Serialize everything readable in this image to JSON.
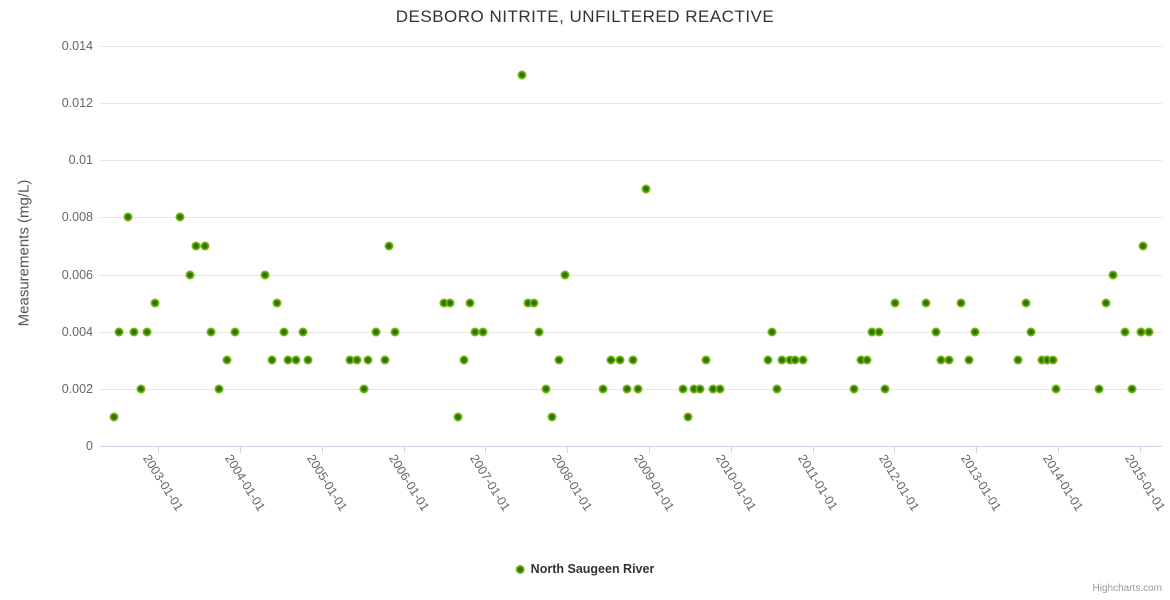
{
  "title": "DESBORO NITRITE, UNFILTERED REACTIVE",
  "credits": "Highcharts.com",
  "legend": {
    "series_label": "North Saugeen River"
  },
  "colors": {
    "point_outer": "#7cbc12",
    "point_inner": "#2f7008",
    "axis_line": "#ccd6eb",
    "gridline": "#e6e6e6",
    "label_text": "#666666",
    "title_text": "#333333"
  },
  "chart_data": {
    "type": "scatter",
    "title": "DESBORO NITRITE, UNFILTERED REACTIVE",
    "xlabel": "",
    "ylabel": "Measurements (mg/L)",
    "grid": true,
    "legend_position": "bottom",
    "xlim": [
      2002.29,
      2015.27
    ],
    "ylim": [
      0,
      0.014
    ],
    "ytick_values": [
      0,
      0.002,
      0.004,
      0.006,
      0.008,
      0.01,
      0.012,
      0.014
    ],
    "ytick_labels": [
      "0",
      "0.002",
      "0.004",
      "0.006",
      "0.008",
      "0.01",
      "0.012",
      "0.014"
    ],
    "xtick_values": [
      2003,
      2004,
      2005,
      2006,
      2007,
      2008,
      2009,
      2010,
      2011,
      2012,
      2013,
      2014,
      2015
    ],
    "xtick_labels": [
      "2003-01-01",
      "2004-01-01",
      "2005-01-01",
      "2006-01-01",
      "2007-01-01",
      "2008-01-01",
      "2009-01-01",
      "2010-01-01",
      "2011-01-01",
      "2012-01-01",
      "2013-01-01",
      "2014-01-01",
      "2015-01-01"
    ],
    "series": [
      {
        "name": "North Saugeen River",
        "color": "#7cbc12",
        "points": [
          [
            2002.46,
            0.001
          ],
          [
            2002.52,
            0.004
          ],
          [
            2002.63,
            0.008
          ],
          [
            2002.71,
            0.004
          ],
          [
            2002.79,
            0.002
          ],
          [
            2002.87,
            0.004
          ],
          [
            2002.96,
            0.005
          ],
          [
            2003.27,
            0.008
          ],
          [
            2003.39,
            0.006
          ],
          [
            2003.46,
            0.007
          ],
          [
            2003.57,
            0.007
          ],
          [
            2003.65,
            0.004
          ],
          [
            2003.75,
            0.002
          ],
          [
            2003.84,
            0.003
          ],
          [
            2003.94,
            0.004
          ],
          [
            2004.31,
            0.006
          ],
          [
            2004.39,
            0.003
          ],
          [
            2004.45,
            0.005
          ],
          [
            2004.54,
            0.004
          ],
          [
            2004.59,
            0.003
          ],
          [
            2004.69,
            0.003
          ],
          [
            2004.77,
            0.004
          ],
          [
            2004.83,
            0.003
          ],
          [
            2005.34,
            0.003
          ],
          [
            2005.43,
            0.003
          ],
          [
            2005.52,
            0.002
          ],
          [
            2005.57,
            0.003
          ],
          [
            2005.66,
            0.004
          ],
          [
            2005.77,
            0.003
          ],
          [
            2005.82,
            0.007
          ],
          [
            2005.89,
            0.004
          ],
          [
            2006.5,
            0.005
          ],
          [
            2006.57,
            0.005
          ],
          [
            2006.66,
            0.001
          ],
          [
            2006.74,
            0.003
          ],
          [
            2006.81,
            0.005
          ],
          [
            2006.87,
            0.004
          ],
          [
            2006.97,
            0.004
          ],
          [
            2007.45,
            0.013
          ],
          [
            2007.52,
            0.005
          ],
          [
            2007.6,
            0.005
          ],
          [
            2007.66,
            0.004
          ],
          [
            2007.74,
            0.002
          ],
          [
            2007.82,
            0.001
          ],
          [
            2007.9,
            0.003
          ],
          [
            2007.97,
            0.006
          ],
          [
            2008.44,
            0.002
          ],
          [
            2008.54,
            0.003
          ],
          [
            2008.64,
            0.003
          ],
          [
            2008.73,
            0.002
          ],
          [
            2008.81,
            0.003
          ],
          [
            2008.87,
            0.002
          ],
          [
            2008.96,
            0.009
          ],
          [
            2009.41,
            0.002
          ],
          [
            2009.48,
            0.001
          ],
          [
            2009.55,
            0.002
          ],
          [
            2009.62,
            0.002
          ],
          [
            2009.7,
            0.003
          ],
          [
            2009.78,
            0.002
          ],
          [
            2009.87,
            0.002
          ],
          [
            2010.45,
            0.003
          ],
          [
            2010.5,
            0.004
          ],
          [
            2010.57,
            0.002
          ],
          [
            2010.63,
            0.003
          ],
          [
            2010.72,
            0.003
          ],
          [
            2010.79,
            0.003
          ],
          [
            2010.88,
            0.003
          ],
          [
            2011.5,
            0.002
          ],
          [
            2011.59,
            0.003
          ],
          [
            2011.67,
            0.003
          ],
          [
            2011.72,
            0.004
          ],
          [
            2011.81,
            0.004
          ],
          [
            2011.88,
            0.002
          ],
          [
            2012.01,
            0.005
          ],
          [
            2012.38,
            0.005
          ],
          [
            2012.51,
            0.004
          ],
          [
            2012.57,
            0.003
          ],
          [
            2012.67,
            0.003
          ],
          [
            2012.81,
            0.005
          ],
          [
            2012.91,
            0.003
          ],
          [
            2012.99,
            0.004
          ],
          [
            2013.51,
            0.003
          ],
          [
            2013.61,
            0.005
          ],
          [
            2013.67,
            0.004
          ],
          [
            2013.8,
            0.003
          ],
          [
            2013.87,
            0.003
          ],
          [
            2013.94,
            0.003
          ],
          [
            2013.98,
            0.002
          ],
          [
            2014.5,
            0.002
          ],
          [
            2014.58,
            0.005
          ],
          [
            2014.67,
            0.006
          ],
          [
            2014.82,
            0.004
          ],
          [
            2014.9,
            0.002
          ],
          [
            2015.01,
            0.004
          ],
          [
            2015.04,
            0.007
          ],
          [
            2015.11,
            0.004
          ]
        ]
      }
    ]
  }
}
